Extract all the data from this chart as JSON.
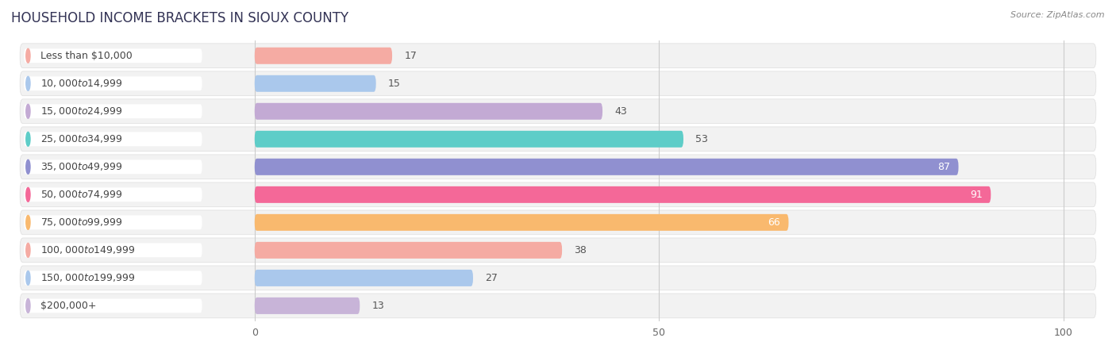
{
  "title": "HOUSEHOLD INCOME BRACKETS IN SIOUX COUNTY",
  "source": "Source: ZipAtlas.com",
  "categories": [
    "Less than $10,000",
    "$10,000 to $14,999",
    "$15,000 to $24,999",
    "$25,000 to $34,999",
    "$35,000 to $49,999",
    "$50,000 to $74,999",
    "$75,000 to $99,999",
    "$100,000 to $149,999",
    "$150,000 to $199,999",
    "$200,000+"
  ],
  "values": [
    17,
    15,
    43,
    53,
    87,
    91,
    66,
    38,
    27,
    13
  ],
  "bar_colors": [
    "#f5aba3",
    "#aac8ec",
    "#c3aad4",
    "#5ecdc8",
    "#9090d0",
    "#f46898",
    "#f9b96e",
    "#f5aba3",
    "#aac8ec",
    "#c8b4d8"
  ],
  "label_pill_colors": [
    "#f5aba3",
    "#aac8ec",
    "#c3aad4",
    "#5ecdc8",
    "#9090d0",
    "#f46898",
    "#f9b96e",
    "#f5aba3",
    "#aac8ec",
    "#c8b4d8"
  ],
  "xlim": [
    0,
    100
  ],
  "xticks": [
    0,
    50,
    100
  ],
  "background_color": "#ffffff",
  "row_bg_color": "#f2f2f2",
  "title_fontsize": 12,
  "label_fontsize": 9,
  "value_fontsize": 9
}
